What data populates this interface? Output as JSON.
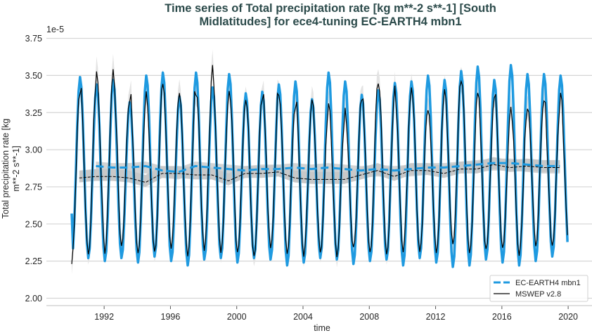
{
  "chart_data": {
    "type": "line",
    "title_lines": [
      "Time series of Total precipitation rate [kg m**-2 s**-1] [South",
      "Midlatitudes] for ece4-tuning EC-EARTH4 mbn1"
    ],
    "xlabel": "time",
    "ylabel_lines": [
      "Total precipitation rate [kg",
      "m**-2 s**-1]"
    ],
    "y_offset_label": "1e-5",
    "xlim": [
      1990,
      2021
    ],
    "ylim": [
      1.97,
      3.78
    ],
    "xticks": [
      1992,
      1996,
      2000,
      2004,
      2008,
      2012,
      2016,
      2020
    ],
    "yticks": [
      "2.00",
      "2.25",
      "2.50",
      "2.75",
      "3.00",
      "3.25",
      "3.50",
      "3.75"
    ],
    "grid": "horizontal",
    "legend_placement": "lower-right",
    "years": [
      1990,
      1991,
      1992,
      1993,
      1994,
      1995,
      1996,
      1997,
      1998,
      1999,
      2000,
      2001,
      2002,
      2003,
      2004,
      2005,
      2006,
      2007,
      2008,
      2009,
      2010,
      2011,
      2012,
      2013,
      2014,
      2015,
      2016,
      2017,
      2018,
      2019
    ],
    "series": [
      {
        "name": "EC-EARTH4 mbn1",
        "color": "#1f9ae0",
        "style": "solid thick monthly; dashed annual running mean",
        "annual_peak": [
          3.49,
          3.44,
          3.47,
          3.32,
          3.5,
          3.52,
          3.36,
          3.52,
          3.42,
          3.51,
          3.38,
          3.39,
          3.44,
          3.46,
          3.34,
          3.52,
          3.46,
          3.37,
          3.4,
          3.45,
          3.46,
          3.5,
          3.47,
          3.53,
          3.56,
          3.47,
          3.57,
          3.51,
          3.51,
          3.5
        ],
        "annual_trough": [
          2.57,
          2.27,
          2.25,
          2.27,
          2.24,
          2.28,
          2.25,
          2.22,
          2.26,
          2.27,
          2.24,
          2.27,
          2.26,
          2.22,
          2.24,
          2.27,
          2.26,
          2.23,
          2.25,
          2.26,
          2.22,
          2.27,
          2.24,
          2.21,
          2.22,
          2.26,
          2.24,
          2.22,
          2.25,
          2.28
        ],
        "running_mean": [
          null,
          2.89,
          2.88,
          2.88,
          2.89,
          2.86,
          2.85,
          2.89,
          2.88,
          2.87,
          2.86,
          2.87,
          2.87,
          2.88,
          2.87,
          2.88,
          2.87,
          2.86,
          2.87,
          2.86,
          2.87,
          2.88,
          2.88,
          2.89,
          2.9,
          2.91,
          2.91,
          2.9,
          2.89,
          2.89
        ]
      },
      {
        "name": "MSWEP v2.8",
        "color": "#000000",
        "style": "thin monthly with grey spread; dashed annual running mean with grey band",
        "annual_peak": [
          3.43,
          3.52,
          3.52,
          3.38,
          3.4,
          3.45,
          3.35,
          3.43,
          3.52,
          3.45,
          3.37,
          3.4,
          3.42,
          3.33,
          3.3,
          3.28,
          3.26,
          3.37,
          3.5,
          3.38,
          3.44,
          3.32,
          3.37,
          3.51,
          3.35,
          3.37,
          3.28,
          3.33,
          3.32,
          3.36
        ],
        "annual_trough": [
          2.23,
          2.29,
          2.31,
          2.35,
          2.3,
          2.3,
          2.34,
          2.29,
          2.32,
          2.3,
          2.31,
          2.28,
          2.33,
          2.3,
          2.28,
          2.31,
          2.29,
          2.33,
          2.3,
          2.3,
          2.32,
          2.3,
          2.31,
          2.35,
          2.3,
          2.32,
          2.34,
          2.3,
          2.36,
          2.35
        ],
        "running_mean": [
          2.81,
          2.82,
          2.82,
          2.81,
          2.78,
          2.84,
          2.84,
          2.83,
          2.83,
          2.79,
          2.84,
          2.84,
          2.85,
          2.81,
          2.8,
          2.8,
          2.8,
          2.83,
          2.86,
          2.82,
          2.86,
          2.86,
          2.84,
          2.87,
          2.87,
          2.9,
          2.88,
          2.89,
          2.88,
          2.88
        ]
      }
    ]
  }
}
